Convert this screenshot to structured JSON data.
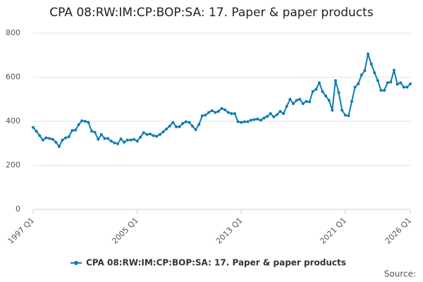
{
  "chart_data": {
    "type": "line",
    "title": "CPA 08:RW:IM:CP:BOP:SA: 17. Paper & paper products",
    "categories": [
      "1997 Q1",
      null,
      null,
      null,
      null,
      null,
      null,
      null,
      null,
      null,
      null,
      null,
      null,
      null,
      null,
      null,
      null,
      null,
      null,
      null,
      null,
      null,
      null,
      null,
      null,
      null,
      null,
      null,
      null,
      null,
      null,
      null,
      "2005 Q1",
      null,
      null,
      null,
      null,
      null,
      null,
      null,
      null,
      null,
      null,
      null,
      null,
      null,
      null,
      null,
      null,
      null,
      null,
      null,
      null,
      null,
      null,
      null,
      null,
      null,
      null,
      null,
      null,
      null,
      null,
      null,
      "2013 Q1",
      null,
      null,
      null,
      null,
      null,
      null,
      null,
      null,
      null,
      null,
      null,
      null,
      null,
      null,
      null,
      null,
      null,
      null,
      null,
      null,
      null,
      null,
      null,
      null,
      null,
      null,
      null,
      null,
      null,
      null,
      null,
      "2021 Q1",
      null,
      null,
      null,
      null,
      null,
      null,
      null,
      null,
      null,
      null,
      null,
      null,
      null,
      null,
      null,
      null,
      null,
      null,
      null,
      "2026 Q1"
    ],
    "series": [
      {
        "name": "CPA 08:RW:IM:CP:BOP:SA: 17. Paper & paper products",
        "color": "#0e7ab5",
        "values": [
          372,
          355,
          335,
          315,
          325,
          322,
          318,
          305,
          285,
          315,
          325,
          330,
          358,
          360,
          385,
          402,
          400,
          395,
          355,
          350,
          318,
          340,
          322,
          322,
          310,
          302,
          298,
          320,
          305,
          315,
          315,
          318,
          310,
          328,
          348,
          340,
          342,
          335,
          332,
          340,
          352,
          365,
          378,
          395,
          375,
          375,
          390,
          398,
          395,
          378,
          362,
          385,
          425,
          428,
          440,
          448,
          440,
          445,
          458,
          452,
          440,
          435,
          435,
          398,
          395,
          398,
          398,
          405,
          408,
          410,
          405,
          415,
          422,
          435,
          420,
          430,
          445,
          435,
          468,
          500,
          480,
          495,
          500,
          480,
          490,
          488,
          535,
          545,
          575,
          535,
          515,
          495,
          450,
          585,
          530,
          450,
          428,
          425,
          490,
          555,
          570,
          610,
          630,
          705,
          660,
          620,
          585,
          540,
          540,
          575,
          578,
          632,
          568,
          575,
          555,
          555,
          570
        ]
      }
    ],
    "ylim": [
      0,
      800
    ],
    "yticks": [
      0,
      200,
      400,
      600,
      800
    ],
    "grid": true,
    "legend": "bottom",
    "source": "Source:"
  }
}
